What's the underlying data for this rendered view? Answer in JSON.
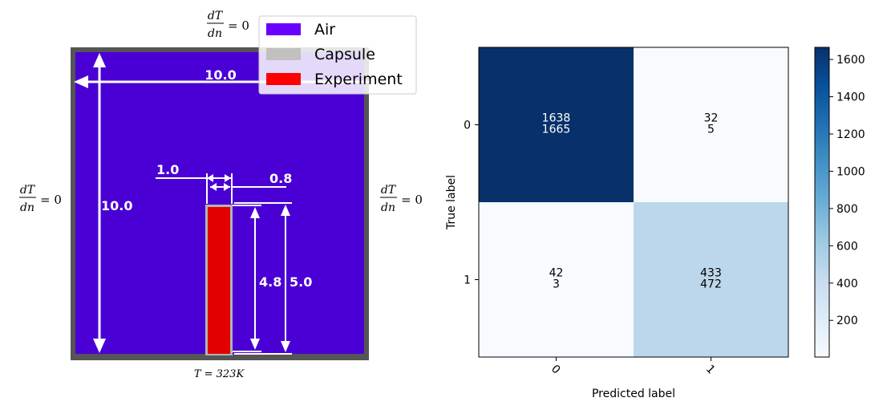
{
  "diagram": {
    "boundary_condition": {
      "numerator": "dT",
      "denominator": "dn",
      "equals": "= 0"
    },
    "bottom_label": "T = 323K",
    "dimensions": {
      "width": "10.0",
      "height": "10.0",
      "capsule_offset": "1.0",
      "capsule_width": "0.8",
      "experiment_height": "4.8",
      "capsule_height": "5.0"
    },
    "legend": [
      {
        "label": "Air",
        "color": "#6a00ff"
      },
      {
        "label": "Capsule",
        "color": "#c0c0c0"
      },
      {
        "label": "Experiment",
        "color": "#ff0000"
      }
    ],
    "colors": {
      "air": "#4a00d4",
      "capsule": "#b4b4b4",
      "experiment": "#e30000",
      "wall": "#555555"
    }
  },
  "chart_data": {
    "type": "heatmap",
    "xlabel": "Predicted label",
    "ylabel": "True label",
    "x_ticks": [
      "0",
      "1"
    ],
    "y_ticks": [
      "0",
      "1"
    ],
    "cells": [
      [
        {
          "top": "1638",
          "bottom": "1665",
          "value": 1665
        },
        {
          "top": "32",
          "bottom": "5",
          "value": 5
        }
      ],
      [
        {
          "top": "42",
          "bottom": "3",
          "value": 3
        },
        {
          "top": "433",
          "bottom": "472",
          "value": 472
        }
      ]
    ],
    "colorbar": {
      "min": 3,
      "max": 1665,
      "ticks": [
        200,
        400,
        600,
        800,
        1000,
        1200,
        1400,
        1600
      ],
      "colormap": "Blues"
    }
  }
}
